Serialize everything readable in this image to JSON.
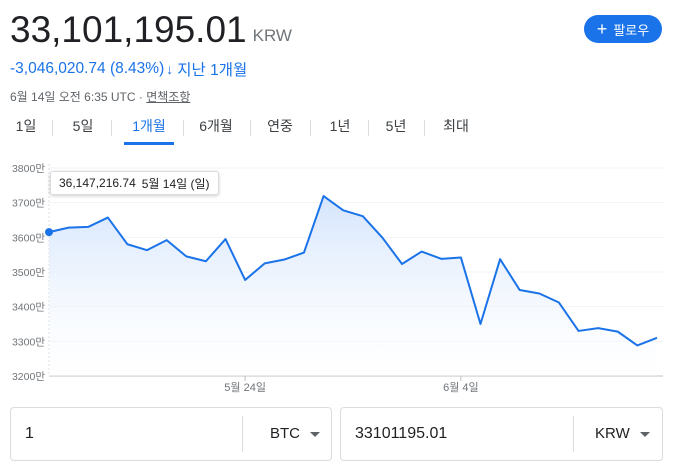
{
  "quote": {
    "price": "33,101,195.01",
    "currency": "KRW",
    "change": "-3,046,020.74 (8.43%)",
    "change_arrow": "↓",
    "change_period": "지난 1개월",
    "timestamp": "6월 14일 오전 6:35 UTC · ",
    "disclaimer": "면책조항"
  },
  "follow_button": {
    "label": "팔로우"
  },
  "tabs": [
    {
      "label": "1일",
      "active": false
    },
    {
      "label": "5일",
      "active": false
    },
    {
      "label": "1개월",
      "active": true
    },
    {
      "label": "6개월",
      "active": false
    },
    {
      "label": "연중",
      "active": false
    },
    {
      "label": "1년",
      "active": false
    },
    {
      "label": "5년",
      "active": false
    },
    {
      "label": "최대",
      "active": false
    }
  ],
  "tooltip": {
    "value": "36,147,216.74",
    "date": "5월 14일 (일)"
  },
  "chart_data": {
    "type": "area",
    "series": [
      {
        "values": [
          3615,
          3628,
          3630,
          3657,
          3580,
          3563,
          3592,
          3545,
          3531,
          3595,
          3477,
          3525,
          3536,
          3556,
          3719,
          3678,
          3661,
          3599,
          3523,
          3559,
          3538,
          3542,
          3350,
          3537,
          3448,
          3438,
          3412,
          3330,
          3338,
          3328,
          3288,
          3310
        ]
      }
    ],
    "y_ticks": [
      "3800만",
      "3700만",
      "3600만",
      "3500만",
      "3400만",
      "3300만",
      "3200만"
    ],
    "ylim": [
      3200,
      3800
    ],
    "x_ticks": [
      {
        "label": "5월 24일",
        "index": 10
      },
      {
        "label": "6월 4일",
        "index": 21
      }
    ],
    "colors": {
      "line": "#1a73e8",
      "fill_top": "#d2e3fc",
      "grid": "#f1f3f4"
    }
  },
  "converter": {
    "left": {
      "value": "1",
      "unit": "BTC"
    },
    "right": {
      "value": "33101195.01",
      "unit": "KRW"
    }
  }
}
